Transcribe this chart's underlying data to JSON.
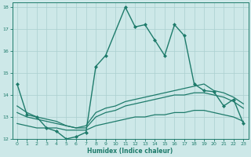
{
  "xlabel": "Humidex (Indice chaleur)",
  "background_color": "#cde8e8",
  "grid_color": "#aacfcf",
  "line_color": "#1e7b6b",
  "xlim": [
    -0.5,
    23.5
  ],
  "ylim": [
    12,
    18.2
  ],
  "xticks": [
    0,
    1,
    2,
    3,
    4,
    5,
    6,
    7,
    8,
    9,
    10,
    11,
    12,
    13,
    14,
    15,
    16,
    17,
    18,
    19,
    20,
    21,
    22,
    23
  ],
  "yticks": [
    12,
    13,
    14,
    15,
    16,
    17,
    18
  ],
  "series": [
    {
      "x": [
        0,
        1,
        2,
        3,
        4,
        5,
        6,
        7,
        8,
        9,
        11,
        12,
        13,
        14,
        15,
        16,
        17,
        18,
        19,
        20,
        21,
        22,
        23
      ],
      "y": [
        14.5,
        13.1,
        13.0,
        12.5,
        12.35,
        12.0,
        12.1,
        12.3,
        15.3,
        15.8,
        18.0,
        17.1,
        17.2,
        16.5,
        15.8,
        17.2,
        16.7,
        14.5,
        14.2,
        14.15,
        13.5,
        13.8,
        12.7
      ],
      "marker": "D",
      "markersize": 2.0,
      "linewidth": 1.0
    },
    {
      "x": [
        0,
        1,
        2,
        3,
        4,
        5,
        6,
        7,
        8,
        9,
        10,
        11,
        12,
        13,
        14,
        15,
        16,
        17,
        18,
        19,
        20,
        21,
        22,
        23
      ],
      "y": [
        13.5,
        13.2,
        13.0,
        12.9,
        12.8,
        12.6,
        12.5,
        12.6,
        13.2,
        13.4,
        13.5,
        13.7,
        13.8,
        13.9,
        14.0,
        14.1,
        14.2,
        14.3,
        14.4,
        14.5,
        14.2,
        14.1,
        13.9,
        13.6
      ],
      "marker": null,
      "markersize": 0,
      "linewidth": 0.9
    },
    {
      "x": [
        0,
        1,
        2,
        3,
        4,
        5,
        6,
        7,
        8,
        9,
        10,
        11,
        12,
        13,
        14,
        15,
        16,
        17,
        18,
        19,
        20,
        21,
        22,
        23
      ],
      "y": [
        13.2,
        13.0,
        12.9,
        12.8,
        12.7,
        12.6,
        12.5,
        12.5,
        13.0,
        13.2,
        13.3,
        13.5,
        13.6,
        13.7,
        13.8,
        13.9,
        14.0,
        14.0,
        14.1,
        14.1,
        14.0,
        13.9,
        13.7,
        13.4
      ],
      "marker": null,
      "markersize": 0,
      "linewidth": 0.9
    },
    {
      "x": [
        0,
        1,
        2,
        3,
        4,
        5,
        6,
        7,
        8,
        9,
        10,
        11,
        12,
        13,
        14,
        15,
        16,
        17,
        18,
        19,
        20,
        21,
        22,
        23
      ],
      "y": [
        12.7,
        12.6,
        12.5,
        12.5,
        12.5,
        12.4,
        12.4,
        12.4,
        12.6,
        12.7,
        12.8,
        12.9,
        13.0,
        13.0,
        13.1,
        13.1,
        13.2,
        13.2,
        13.3,
        13.3,
        13.2,
        13.1,
        13.0,
        12.8
      ],
      "marker": null,
      "markersize": 0,
      "linewidth": 0.9
    }
  ]
}
